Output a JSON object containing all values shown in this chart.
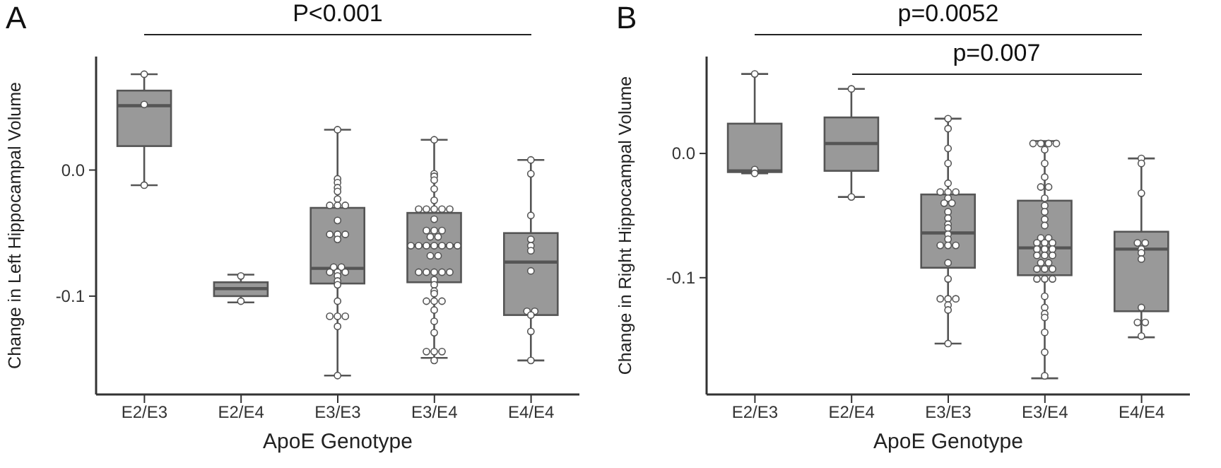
{
  "chart_data": [
    {
      "type": "box",
      "title": "A",
      "xlabel": "ApoE Genotype",
      "ylabel": "Change in Left Hippocampal Volume",
      "annotations": [
        "P<0.001"
      ],
      "categories": [
        "E2/E3",
        "E2/E4",
        "E3/E3",
        "E3/E4",
        "E4/E4"
      ],
      "color": "#999999",
      "boxes": [
        {
          "low": -0.012,
          "q1": 0.019,
          "median": 0.051,
          "q3": 0.063,
          "high": 0.076
        },
        {
          "low": -0.105,
          "q1": -0.1,
          "median": -0.094,
          "q3": -0.089,
          "high": -0.083
        },
        {
          "low": -0.163,
          "q1": -0.09,
          "median": -0.078,
          "q3": -0.03,
          "high": 0.032
        },
        {
          "low": -0.149,
          "q1": -0.089,
          "median": -0.06,
          "q3": -0.034,
          "high": 0.024
        },
        {
          "low": -0.151,
          "q1": -0.115,
          "median": -0.073,
          "q3": -0.05,
          "high": 0.008
        }
      ],
      "series": [
        {
          "type": "scatter",
          "color": "#ffffff",
          "x": [
            "E2/E3",
            "E2/E3",
            "E2/E3",
            "E2/E4",
            "E2/E4",
            "E3/E3",
            "E3/E3",
            "E3/E3",
            "E3/E3",
            "E3/E3",
            "E3/E3",
            "E3/E3",
            "E3/E3",
            "E3/E3",
            "E3/E3",
            "E3/E3",
            "E3/E3",
            "E3/E3",
            "E3/E3",
            "E3/E3",
            "E3/E3",
            "E3/E3",
            "E3/E3",
            "E3/E3",
            "E3/E3",
            "E3/E3",
            "E3/E3",
            "E3/E3",
            "E3/E3",
            "E3/E3",
            "E3/E3",
            "E3/E3",
            "E3/E3",
            "E3/E4",
            "E3/E4",
            "E3/E4",
            "E3/E4",
            "E3/E4",
            "E3/E4",
            "E3/E4",
            "E3/E4",
            "E3/E4",
            "E3/E4",
            "E3/E4",
            "E3/E4",
            "E3/E4",
            "E3/E4",
            "E3/E4",
            "E3/E4",
            "E3/E4",
            "E3/E4",
            "E3/E4",
            "E3/E4",
            "E3/E4",
            "E3/E4",
            "E3/E4",
            "E3/E4",
            "E3/E4",
            "E3/E4",
            "E3/E4",
            "E3/E4",
            "E3/E4",
            "E3/E4",
            "E3/E4",
            "E3/E4",
            "E3/E4",
            "E3/E4",
            "E3/E4",
            "E3/E4",
            "E3/E4",
            "E3/E4",
            "E3/E4",
            "E3/E4",
            "E3/E4",
            "E3/E4",
            "E3/E4",
            "E3/E4",
            "E3/E4",
            "E4/E4",
            "E4/E4",
            "E4/E4",
            "E4/E4",
            "E4/E4",
            "E4/E4",
            "E4/E4",
            "E4/E4",
            "E4/E4",
            "E4/E4",
            "E4/E4",
            "E4/E4"
          ],
          "values": [
            0.076,
            0.052,
            -0.012,
            -0.084,
            -0.104,
            0.032,
            -0.007,
            -0.01,
            -0.014,
            -0.017,
            -0.023,
            -0.028,
            -0.028,
            -0.028,
            -0.04,
            -0.051,
            -0.051,
            -0.051,
            -0.055,
            -0.077,
            -0.077,
            -0.081,
            -0.081,
            -0.081,
            -0.084,
            -0.088,
            -0.091,
            -0.104,
            -0.116,
            -0.116,
            -0.116,
            -0.124,
            -0.163,
            0.024,
            -0.003,
            -0.005,
            -0.008,
            -0.015,
            -0.024,
            -0.031,
            -0.031,
            -0.031,
            -0.031,
            -0.031,
            -0.039,
            -0.048,
            -0.048,
            -0.048,
            -0.053,
            -0.053,
            -0.06,
            -0.06,
            -0.06,
            -0.06,
            -0.06,
            -0.06,
            -0.06,
            -0.068,
            -0.068,
            -0.081,
            -0.081,
            -0.081,
            -0.081,
            -0.081,
            -0.087,
            -0.091,
            -0.096,
            -0.098,
            -0.104,
            -0.104,
            -0.104,
            -0.111,
            -0.12,
            -0.129,
            -0.144,
            -0.144,
            -0.144,
            -0.151,
            0.008,
            -0.003,
            -0.036,
            -0.055,
            -0.06,
            -0.064,
            -0.08,
            -0.112,
            -0.112,
            -0.115,
            -0.128,
            -0.151
          ]
        }
      ],
      "ylim": [
        -0.178,
        0.09
      ],
      "yticks": [
        -0.1,
        {
          "value": 0,
          "label": "0.0"
        }
      ],
      "grid": false,
      "legend": false
    },
    {
      "type": "box",
      "title": "B",
      "xlabel": "ApoE Genotype",
      "ylabel": "Change in Right Hippocampal Volume",
      "annotations": [
        "p=0.0052",
        "p=0.007"
      ],
      "categories": [
        "E2/E3",
        "E2/E4",
        "E3/E3",
        "E3/E4",
        "E4/E4"
      ],
      "color": "#999999",
      "boxes": [
        {
          "low": -0.016,
          "q1": -0.015,
          "median": -0.014,
          "q3": 0.024,
          "high": 0.064
        },
        {
          "low": -0.035,
          "q1": -0.014,
          "median": 0.008,
          "q3": 0.029,
          "high": 0.052
        },
        {
          "low": -0.153,
          "q1": -0.092,
          "median": -0.064,
          "q3": -0.033,
          "high": 0.028
        },
        {
          "low": -0.181,
          "q1": -0.098,
          "median": -0.076,
          "q3": -0.038,
          "high": 0.01
        },
        {
          "low": -0.148,
          "q1": -0.127,
          "median": -0.077,
          "q3": -0.063,
          "high": -0.004
        }
      ],
      "series": [
        {
          "type": "scatter",
          "color": "#ffffff",
          "x": [
            "E2/E3",
            "E2/E3",
            "E2/E3",
            "E2/E4",
            "E2/E4",
            "E3/E3",
            "E3/E3",
            "E3/E3",
            "E3/E3",
            "E3/E3",
            "E3/E3",
            "E3/E3",
            "E3/E3",
            "E3/E3",
            "E3/E3",
            "E3/E3",
            "E3/E3",
            "E3/E3",
            "E3/E3",
            "E3/E3",
            "E3/E3",
            "E3/E3",
            "E3/E3",
            "E3/E3",
            "E3/E3",
            "E3/E3",
            "E3/E3",
            "E3/E3",
            "E3/E3",
            "E3/E3",
            "E3/E3",
            "E3/E3",
            "E3/E3",
            "E3/E4",
            "E3/E4",
            "E3/E4",
            "E3/E4",
            "E3/E4",
            "E3/E4",
            "E3/E4",
            "E3/E4",
            "E3/E4",
            "E3/E4",
            "E3/E4",
            "E3/E4",
            "E3/E4",
            "E3/E4",
            "E3/E4",
            "E3/E4",
            "E3/E4",
            "E3/E4",
            "E3/E4",
            "E3/E4",
            "E3/E4",
            "E3/E4",
            "E3/E4",
            "E3/E4",
            "E3/E4",
            "E3/E4",
            "E3/E4",
            "E3/E4",
            "E3/E4",
            "E3/E4",
            "E3/E4",
            "E3/E4",
            "E3/E4",
            "E3/E4",
            "E3/E4",
            "E3/E4",
            "E3/E4",
            "E3/E4",
            "E3/E4",
            "E3/E4",
            "E4/E4",
            "E4/E4",
            "E4/E4",
            "E4/E4",
            "E4/E4",
            "E4/E4",
            "E4/E4",
            "E4/E4",
            "E4/E4",
            "E4/E4",
            "E4/E4",
            "E4/E4"
          ],
          "values": [
            0.064,
            -0.013,
            -0.016,
            0.052,
            -0.035,
            0.028,
            0.02,
            0.004,
            -0.008,
            -0.024,
            -0.031,
            -0.031,
            -0.031,
            -0.036,
            -0.04,
            -0.04,
            -0.047,
            -0.052,
            -0.057,
            -0.06,
            -0.065,
            -0.069,
            -0.074,
            -0.074,
            -0.074,
            -0.088,
            -0.101,
            -0.117,
            -0.117,
            -0.117,
            -0.122,
            -0.126,
            -0.153,
            0.008,
            0.008,
            0.008,
            0.008,
            0.003,
            -0.008,
            -0.019,
            -0.027,
            -0.027,
            -0.036,
            -0.042,
            -0.047,
            -0.053,
            -0.058,
            -0.068,
            -0.068,
            -0.072,
            -0.072,
            -0.072,
            -0.077,
            -0.077,
            -0.077,
            -0.082,
            -0.082,
            -0.082,
            -0.088,
            -0.088,
            -0.093,
            -0.093,
            -0.093,
            -0.101,
            -0.101,
            -0.101,
            -0.115,
            -0.124,
            -0.129,
            -0.132,
            -0.144,
            -0.16,
            -0.179,
            -0.004,
            -0.008,
            -0.032,
            -0.072,
            -0.072,
            -0.077,
            -0.08,
            -0.085,
            -0.124,
            -0.136,
            -0.136,
            -0.147
          ]
        }
      ],
      "ylim": [
        -0.194,
        0.078
      ],
      "yticks": [
        -0.1,
        {
          "value": 0,
          "label": "0.0"
        }
      ],
      "grid": false,
      "legend": false
    }
  ]
}
